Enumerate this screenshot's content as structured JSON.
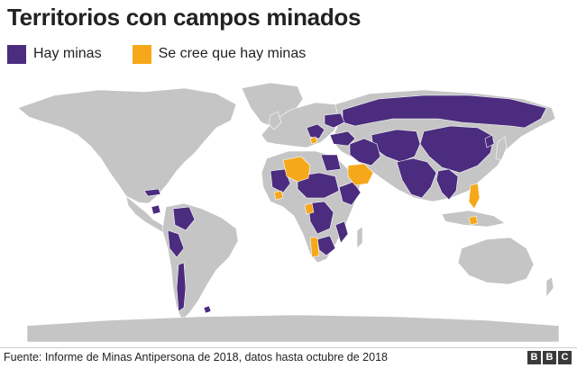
{
  "title": "Territorios con campos minados",
  "legend": [
    {
      "label": "Hay minas",
      "color": "#4b2c7e"
    },
    {
      "label": "Se cree que hay minas",
      "color": "#f6a81b"
    }
  ],
  "colors": {
    "land": "#c5c5c5",
    "mined": "#4b2c7e",
    "suspected": "#f6a81b",
    "background": "#ffffff"
  },
  "source": "Fuente: Informe de Minas Antipersona de 2018, datos hasta octubre de 2018",
  "logo": {
    "letters": [
      "B",
      "B",
      "C"
    ]
  }
}
